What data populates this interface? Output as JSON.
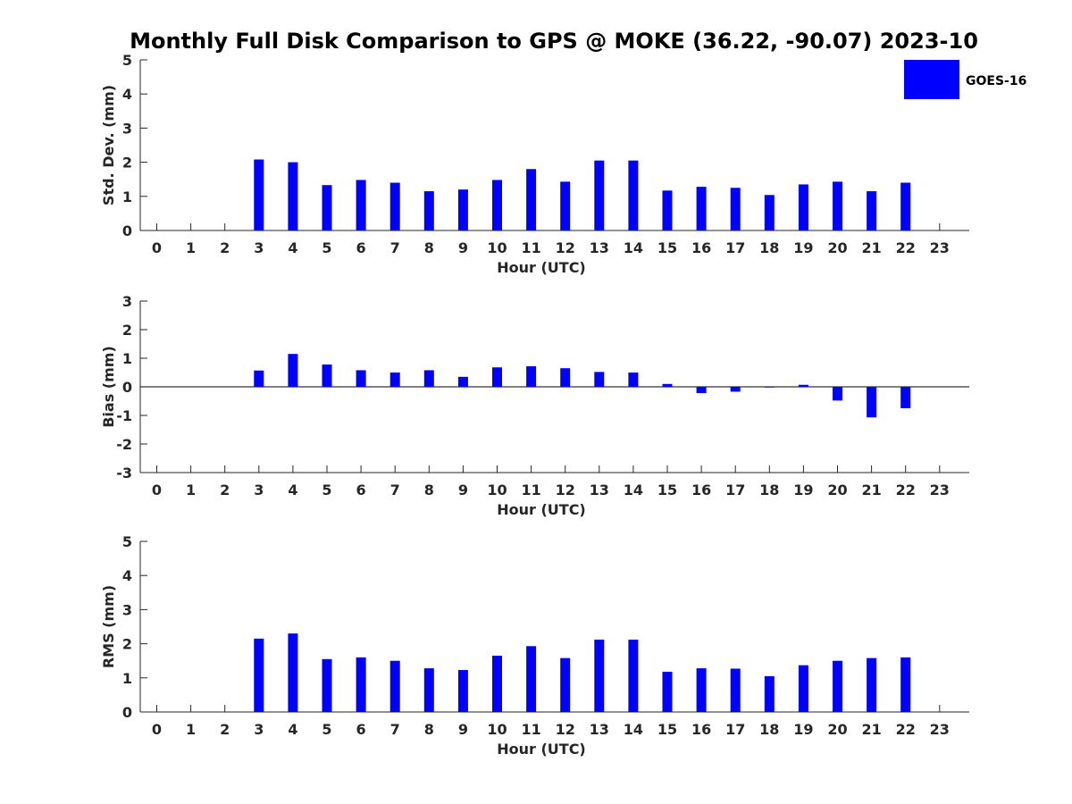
{
  "title": "Monthly Full Disk Comparison to GPS @ MOKE (36.22, -90.07) 2023-10",
  "legend": {
    "label": "GOES-16",
    "color": "#0000ff",
    "placement": "top-right"
  },
  "chart_data": [
    {
      "type": "bar",
      "categories": [
        "0",
        "1",
        "2",
        "3",
        "4",
        "5",
        "6",
        "7",
        "8",
        "9",
        "10",
        "11",
        "12",
        "13",
        "14",
        "15",
        "16",
        "17",
        "18",
        "19",
        "20",
        "21",
        "22",
        "23"
      ],
      "series": [
        {
          "name": "GOES-16",
          "values": [
            null,
            null,
            null,
            2.08,
            2.0,
            1.33,
            1.48,
            1.4,
            1.15,
            1.2,
            1.48,
            1.8,
            1.43,
            2.05,
            2.05,
            1.17,
            1.28,
            1.25,
            1.04,
            1.35,
            1.43,
            1.15,
            1.4,
            null
          ]
        }
      ],
      "xlabel": "Hour (UTC)",
      "ylabel": "Std. Dev. (mm)",
      "ylim": [
        0,
        5
      ],
      "yticks": [
        0,
        1,
        2,
        3,
        4,
        5
      ],
      "grid": false
    },
    {
      "type": "bar",
      "categories": [
        "0",
        "1",
        "2",
        "3",
        "4",
        "5",
        "6",
        "7",
        "8",
        "9",
        "10",
        "11",
        "12",
        "13",
        "14",
        "15",
        "16",
        "17",
        "18",
        "19",
        "20",
        "21",
        "22",
        "23"
      ],
      "series": [
        {
          "name": "GOES-16",
          "values": [
            null,
            null,
            null,
            0.57,
            1.15,
            0.78,
            0.58,
            0.5,
            0.58,
            0.35,
            0.68,
            0.72,
            0.65,
            0.52,
            0.5,
            0.1,
            -0.22,
            -0.17,
            -0.02,
            0.07,
            -0.48,
            -1.07,
            -0.75,
            null
          ]
        }
      ],
      "xlabel": "Hour (UTC)",
      "ylabel": "Bias (mm)",
      "ylim": [
        -3,
        3
      ],
      "yticks": [
        -3,
        -2,
        -1,
        0,
        1,
        2,
        3
      ],
      "grid": false
    },
    {
      "type": "bar",
      "categories": [
        "0",
        "1",
        "2",
        "3",
        "4",
        "5",
        "6",
        "7",
        "8",
        "9",
        "10",
        "11",
        "12",
        "13",
        "14",
        "15",
        "16",
        "17",
        "18",
        "19",
        "20",
        "21",
        "22",
        "23"
      ],
      "series": [
        {
          "name": "GOES-16",
          "values": [
            null,
            null,
            null,
            2.15,
            2.3,
            1.55,
            1.6,
            1.5,
            1.28,
            1.23,
            1.65,
            1.93,
            1.58,
            2.12,
            2.12,
            1.18,
            1.28,
            1.27,
            1.05,
            1.37,
            1.5,
            1.58,
            1.6,
            null
          ]
        }
      ],
      "xlabel": "Hour (UTC)",
      "ylabel": "RMS (mm)",
      "ylim": [
        0,
        5
      ],
      "yticks": [
        0,
        1,
        2,
        3,
        4,
        5
      ],
      "grid": false
    }
  ]
}
